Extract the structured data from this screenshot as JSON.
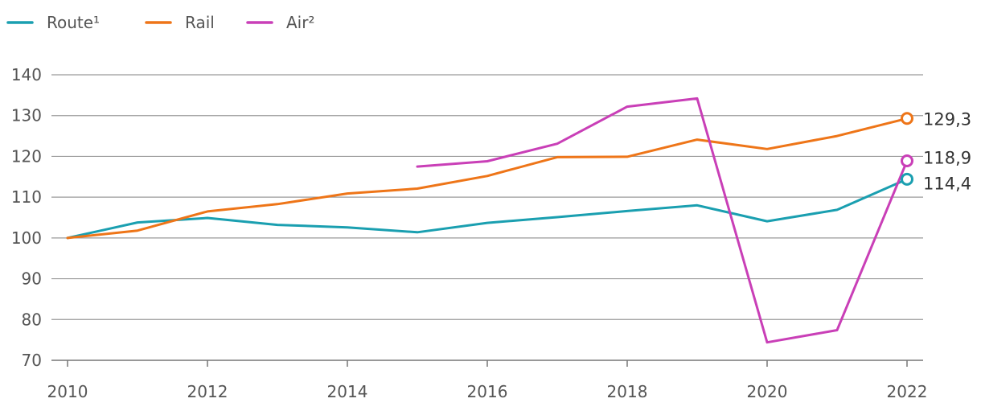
{
  "chart_data": {
    "type": "line",
    "title": "",
    "xlabel": "",
    "ylabel": "",
    "x": [
      2010,
      2011,
      2012,
      2013,
      2014,
      2015,
      2016,
      2017,
      2018,
      2019,
      2020,
      2021,
      2022
    ],
    "xticks": [
      "2010",
      "2012",
      "2014",
      "2016",
      "2018",
      "2020",
      "2022"
    ],
    "yticks": [
      "70",
      "80",
      "90",
      "100",
      "110",
      "120",
      "130",
      "140"
    ],
    "ylim": [
      70,
      140
    ],
    "grid": true,
    "legend_position": "top-left",
    "series": [
      {
        "name": "Route¹",
        "color": "#1A9FB0",
        "values": [
          100,
          103.8,
          104.9,
          103.2,
          102.6,
          101.4,
          103.7,
          105.1,
          106.6,
          108.0,
          104.1,
          106.9,
          114.4
        ],
        "end_label": "114,4"
      },
      {
        "name": "Rail",
        "color": "#EE7518",
        "values": [
          100,
          101.8,
          106.5,
          108.3,
          110.9,
          112.1,
          115.2,
          119.8,
          119.9,
          124.1,
          121.8,
          125.0,
          129.3
        ],
        "end_label": "129,3"
      },
      {
        "name": "Air²",
        "color": "#C93FB7",
        "values": [
          null,
          null,
          null,
          null,
          null,
          117.5,
          118.8,
          123.1,
          132.2,
          134.2,
          74.4,
          77.4,
          118.9
        ],
        "end_label": "118,9"
      }
    ]
  }
}
